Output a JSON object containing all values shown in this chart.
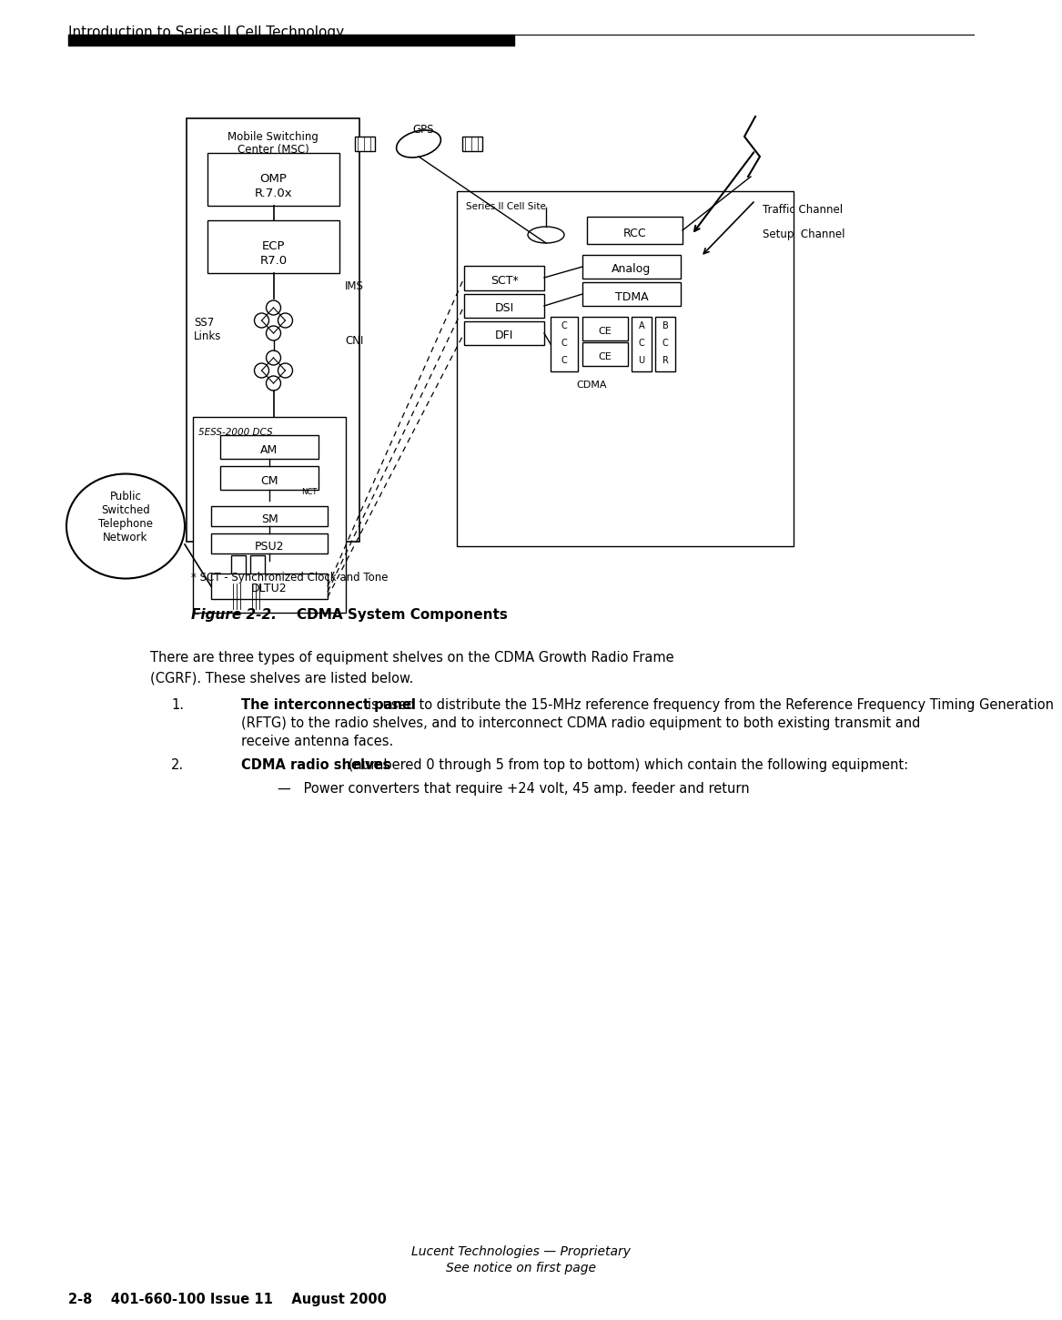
{
  "page_title": "Introduction to Series II Cell Technology",
  "footer_line1": "Lucent Technologies — Proprietary",
  "footer_line2": "See notice on first page",
  "footer_line3": "2-8    401-660-100 Issue 11    August 2000",
  "figure_label": "Figure 2-2.",
  "figure_title": "    CDMA System Components",
  "body_text": [
    "There are three types of equipment shelves on the CDMA Growth Radio Frame",
    "(CGRF). These shelves are listed below."
  ],
  "list_items": [
    {
      "num": "1.",
      "bold": "The interconnect panel",
      "rest": "  is used to distribute the 15-MHz reference frequency from the Reference Frequency Timing Generation (RFTG) to the radio shelves, and to interconnect CDMA radio equipment to both existing transmit and receive antenna faces."
    },
    {
      "num": "2.",
      "bold": "CDMA radio shelves",
      "rest": " (numbered 0 through 5 from top to bottom) which contain the following equipment:"
    }
  ],
  "sub_list": [
    "—   Power converters that require +24 volt, 45 amp. feeder and return"
  ],
  "footnote": "* SCT - Synchronized Clock and Tone",
  "bg_color": "#ffffff",
  "text_color": "#000000",
  "box_color": "#000000"
}
